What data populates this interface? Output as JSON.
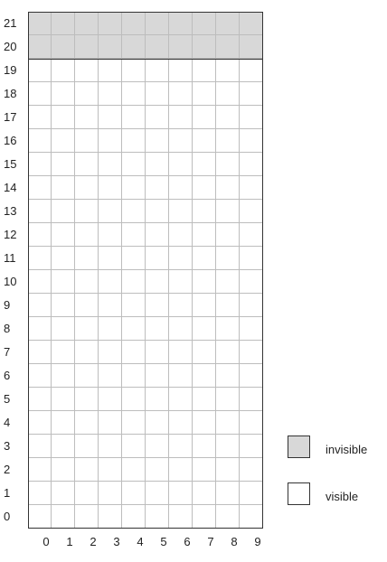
{
  "grid": {
    "rows": [
      "21",
      "20",
      "19",
      "18",
      "17",
      "16",
      "15",
      "14",
      "13",
      "12",
      "11",
      "10",
      "9",
      "8",
      "7",
      "6",
      "5",
      "4",
      "3",
      "2",
      "1",
      "0"
    ],
    "columns": [
      "0",
      "1",
      "2",
      "3",
      "4",
      "5",
      "6",
      "7",
      "8",
      "9"
    ],
    "invisible_rows": [
      "21",
      "20"
    ]
  },
  "legend": {
    "invisible": {
      "label": "invisible",
      "color": "#d8d8d8"
    },
    "visible": {
      "label": "visible",
      "color": "#ffffff"
    }
  }
}
